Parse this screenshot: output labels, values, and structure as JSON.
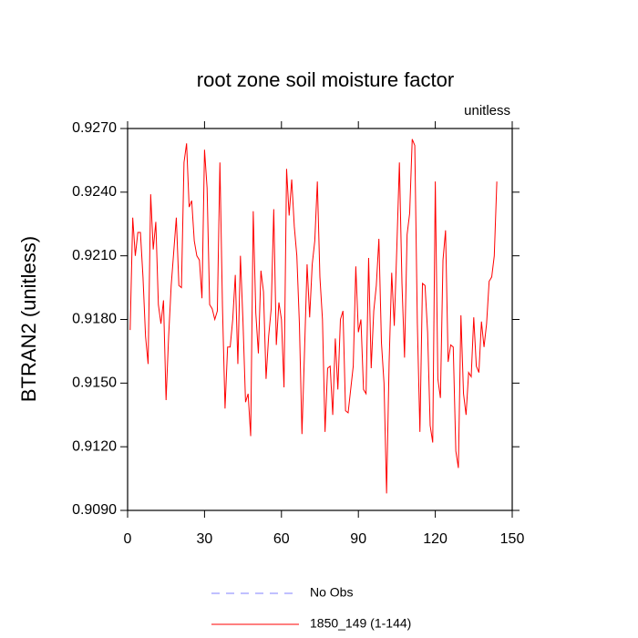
{
  "chart_data": {
    "type": "line",
    "title": "root zone soil moisture factor",
    "subtitle": "unitless",
    "y_label": "BTRAN2  (unitless)",
    "x": [
      1,
      2,
      3,
      4,
      5,
      6,
      7,
      8,
      9,
      10,
      11,
      12,
      13,
      14,
      15,
      16,
      17,
      18,
      19,
      20,
      21,
      22,
      23,
      24,
      25,
      26,
      27,
      28,
      29,
      30,
      31,
      32,
      33,
      34,
      35,
      36,
      37,
      38,
      39,
      40,
      41,
      42,
      43,
      44,
      45,
      46,
      47,
      48,
      49,
      50,
      51,
      52,
      53,
      54,
      55,
      56,
      57,
      58,
      59,
      60,
      61,
      62,
      63,
      64,
      65,
      66,
      67,
      68,
      69,
      70,
      71,
      72,
      73,
      74,
      75,
      76,
      77,
      78,
      79,
      80,
      81,
      82,
      83,
      84,
      85,
      86,
      87,
      88,
      89,
      90,
      91,
      92,
      93,
      94,
      95,
      96,
      97,
      98,
      99,
      100,
      101,
      102,
      103,
      104,
      105,
      106,
      107,
      108,
      109,
      110,
      111,
      112,
      113,
      114,
      115,
      116,
      117,
      118,
      119,
      120,
      121,
      122,
      123,
      124,
      125,
      126,
      127,
      128,
      129,
      130,
      131,
      132,
      133,
      134,
      135,
      136,
      137,
      138,
      139,
      140,
      141,
      142,
      143,
      144
    ],
    "series": [
      {
        "name": "1850_149 (1-144)",
        "color": "#ff0000",
        "values": [
          0.9175,
          0.9228,
          0.921,
          0.9221,
          0.9221,
          0.92,
          0.9172,
          0.9159,
          0.9239,
          0.9213,
          0.9226,
          0.9187,
          0.9178,
          0.9189,
          0.9142,
          0.9172,
          0.9196,
          0.9212,
          0.9228,
          0.9196,
          0.9195,
          0.9254,
          0.9263,
          0.9233,
          0.9236,
          0.9217,
          0.921,
          0.9208,
          0.919,
          0.926,
          0.9242,
          0.9187,
          0.9185,
          0.918,
          0.9184,
          0.9254,
          0.9186,
          0.9138,
          0.9167,
          0.9167,
          0.918,
          0.9201,
          0.9159,
          0.921,
          0.9179,
          0.9141,
          0.9145,
          0.9125,
          0.9231,
          0.9183,
          0.9164,
          0.9203,
          0.9193,
          0.9152,
          0.9172,
          0.9185,
          0.9232,
          0.9168,
          0.9188,
          0.918,
          0.9148,
          0.9251,
          0.9229,
          0.9246,
          0.9224,
          0.921,
          0.9178,
          0.9126,
          0.9165,
          0.9206,
          0.9181,
          0.9206,
          0.9217,
          0.9245,
          0.92,
          0.918,
          0.9127,
          0.9157,
          0.9158,
          0.9135,
          0.9171,
          0.9147,
          0.918,
          0.9184,
          0.9137,
          0.9136,
          0.9147,
          0.9158,
          0.9205,
          0.9174,
          0.918,
          0.9147,
          0.9145,
          0.9209,
          0.9157,
          0.9184,
          0.9196,
          0.9218,
          0.9169,
          0.915,
          0.9098,
          0.916,
          0.9202,
          0.9177,
          0.9214,
          0.9254,
          0.9197,
          0.9162,
          0.922,
          0.923,
          0.9265,
          0.9262,
          0.9178,
          0.9127,
          0.9197,
          0.9196,
          0.9174,
          0.913,
          0.9122,
          0.9245,
          0.9152,
          0.9143,
          0.9208,
          0.9222,
          0.916,
          0.9168,
          0.9167,
          0.9118,
          0.911,
          0.9182,
          0.9145,
          0.9135,
          0.9155,
          0.9153,
          0.9181,
          0.9158,
          0.9155,
          0.9179,
          0.9167,
          0.9178,
          0.9198,
          0.92,
          0.921,
          0.9245
        ]
      }
    ],
    "other_legend": [
      {
        "name": "No Obs",
        "color": "#8080ff",
        "dashed": true
      }
    ],
    "xlim": [
      0,
      150
    ],
    "xticks": [
      0,
      30,
      60,
      90,
      120,
      150
    ],
    "ylim": [
      0.909,
      0.927
    ],
    "yticks": [
      {
        "value": 0.909,
        "label": "0.9090"
      },
      {
        "value": 0.912,
        "label": "0.9120"
      },
      {
        "value": 0.915,
        "label": "0.9150"
      },
      {
        "value": 0.918,
        "label": "0.9180"
      },
      {
        "value": 0.921,
        "label": "0.9210"
      },
      {
        "value": 0.924,
        "label": "0.9240"
      },
      {
        "value": 0.927,
        "label": "0.9270"
      }
    ]
  }
}
